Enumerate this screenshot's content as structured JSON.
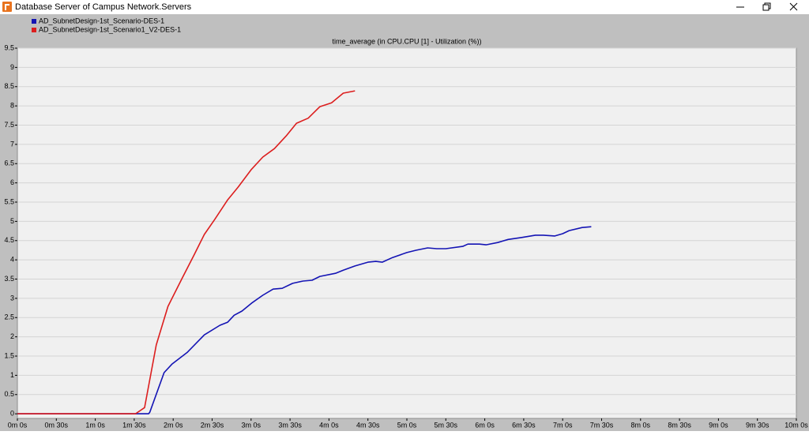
{
  "window": {
    "title": "Database Server of Campus Network.Servers"
  },
  "chart_data": {
    "type": "line",
    "title": "time_average (in CPU.CPU [1] - Utilization (%))",
    "series": [
      {
        "name": "AD_SubnetDesign-1st_Scenario-DES-1",
        "color": "#1414b4",
        "x": [
          0,
          101,
          102,
          113,
          119,
          131,
          144,
          156,
          162,
          167,
          173,
          181,
          189,
          197,
          204,
          212,
          220,
          227,
          233,
          245,
          251,
          260,
          270,
          276,
          281,
          289,
          300,
          307,
          316,
          323,
          330,
          343,
          347,
          356,
          361,
          370,
          378,
          388,
          399,
          405,
          414,
          420,
          425,
          435,
          442
        ],
        "values": [
          0,
          0,
          0.04,
          1.07,
          1.29,
          1.6,
          2.05,
          2.3,
          2.38,
          2.56,
          2.67,
          2.89,
          3.08,
          3.24,
          3.26,
          3.39,
          3.45,
          3.47,
          3.57,
          3.65,
          3.73,
          3.84,
          3.94,
          3.96,
          3.94,
          4.06,
          4.19,
          4.25,
          4.31,
          4.29,
          4.29,
          4.35,
          4.41,
          4.41,
          4.39,
          4.45,
          4.53,
          4.58,
          4.64,
          4.64,
          4.62,
          4.68,
          4.76,
          4.84,
          4.86
        ]
      },
      {
        "name": "AD_SubnetDesign-1st_Scenario1_V2-DES-1",
        "color": "#dc1e1e",
        "x": [
          0,
          91,
          98,
          107,
          116,
          127,
          136,
          144,
          152,
          162,
          170,
          180,
          189,
          198,
          207,
          215,
          224,
          233,
          242,
          251,
          260
        ],
        "values": [
          0,
          0,
          0.16,
          1.79,
          2.79,
          3.53,
          4.12,
          4.66,
          5.05,
          5.56,
          5.89,
          6.34,
          6.67,
          6.89,
          7.22,
          7.55,
          7.68,
          7.98,
          8.08,
          8.33,
          8.39
        ]
      }
    ],
    "xlim": [
      0,
      600
    ],
    "xticks": [
      {
        "value": 0,
        "label": "0m 0s"
      },
      {
        "value": 30,
        "label": "0m 30s"
      },
      {
        "value": 60,
        "label": "1m 0s"
      },
      {
        "value": 90,
        "label": "1m 30s"
      },
      {
        "value": 120,
        "label": "2m 0s"
      },
      {
        "value": 150,
        "label": "2m 30s"
      },
      {
        "value": 180,
        "label": "3m 0s"
      },
      {
        "value": 210,
        "label": "3m 30s"
      },
      {
        "value": 240,
        "label": "4m 0s"
      },
      {
        "value": 270,
        "label": "4m 30s"
      },
      {
        "value": 300,
        "label": "5m 0s"
      },
      {
        "value": 330,
        "label": "5m 30s"
      },
      {
        "value": 360,
        "label": "6m 0s"
      },
      {
        "value": 390,
        "label": "6m 30s"
      },
      {
        "value": 420,
        "label": "7m 0s"
      },
      {
        "value": 450,
        "label": "7m 30s"
      },
      {
        "value": 480,
        "label": "8m 0s"
      },
      {
        "value": 510,
        "label": "8m 30s"
      },
      {
        "value": 540,
        "label": "9m 0s"
      },
      {
        "value": 570,
        "label": "9m 30s"
      },
      {
        "value": 600,
        "label": "10m 0s"
      }
    ],
    "ylim": [
      -0.12,
      9.5
    ],
    "yticks": [
      0,
      0.5,
      1,
      1.5,
      2,
      2.5,
      3,
      3.5,
      4,
      4.5,
      5,
      5.5,
      6,
      6.5,
      7,
      7.5,
      8,
      8.5,
      9,
      9.5
    ],
    "grid": true,
    "legend": "top-left"
  }
}
